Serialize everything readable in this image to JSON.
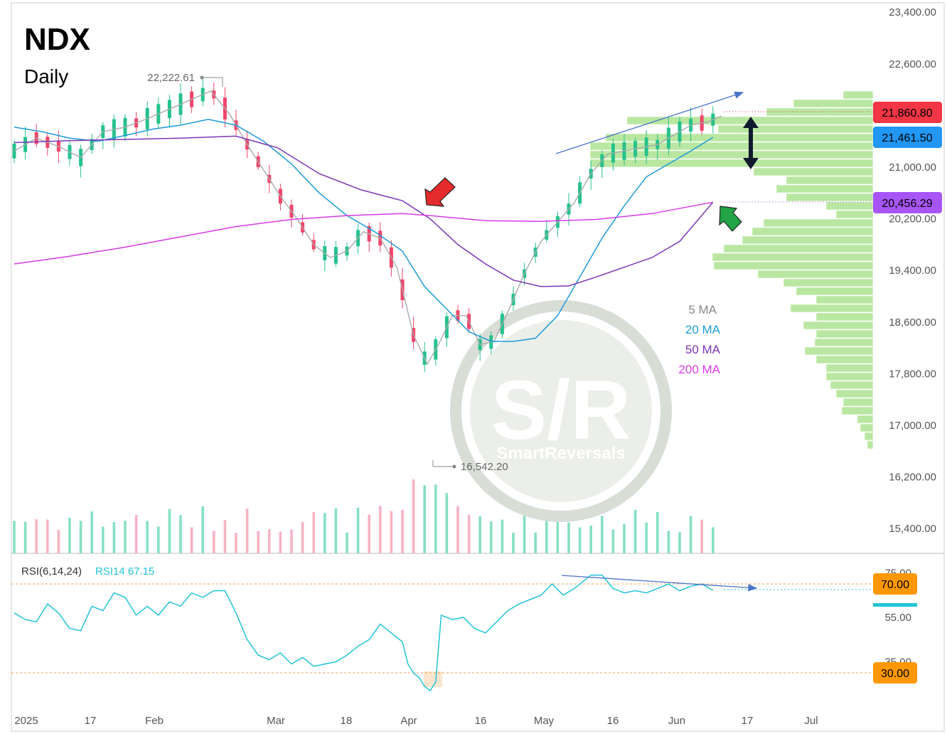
{
  "chart_data": [
    {
      "type": "candlestick",
      "title": "NDX",
      "subtitle": "Daily",
      "x_tick_labels": [
        "2025",
        "17",
        "Feb",
        "Mar",
        "18",
        "Apr",
        "16",
        "May",
        "16",
        "Jun",
        "17",
        "Jul"
      ],
      "y_tick_labels": [
        "23,400.00",
        "22,600.00",
        "21,000.00",
        "20,200.00",
        "19,400.00",
        "18,600.00",
        "17,800.00",
        "17,000.00",
        "16,200.00",
        "15,400.00"
      ],
      "y_tick_values": [
        23400,
        22600,
        21000,
        20200,
        19400,
        18600,
        17800,
        17000,
        16200,
        15400
      ],
      "ylim": [
        14950,
        23600
      ],
      "high_marker": {
        "value": 22222.61,
        "label": "22,222.61"
      },
      "low_marker": {
        "value": 16542.2,
        "label": "16,542.20"
      },
      "price_tags": [
        {
          "value": 21860.8,
          "label": "21,860.80",
          "color": "#f23645"
        },
        {
          "value": 21461.5,
          "label": "21,461.50",
          "color": "#2196f3"
        },
        {
          "value": 20456.29,
          "label": "20,456.29",
          "color": "#a855f7"
        }
      ],
      "legend": [
        {
          "label": "5 MA",
          "color": "#888888"
        },
        {
          "label": "20 MA",
          "color": "#1e9bd7"
        },
        {
          "label": "50 MA",
          "color": "#7b35b5"
        },
        {
          "label": "200 MA",
          "color": "#d63be6"
        }
      ],
      "ma_series": [
        {
          "name": "5 MA",
          "color": "#aaaaaa",
          "values": [
            [
              0,
              21250
            ],
            [
              8,
              21450
            ],
            [
              16,
              21320
            ],
            [
              24,
              21150
            ],
            [
              32,
              21550
            ],
            [
              40,
              21620
            ],
            [
              48,
              21750
            ],
            [
              56,
              21900
            ],
            [
              64,
              22050
            ],
            [
              71,
              22180
            ],
            [
              78,
              21800
            ],
            [
              84,
              21350
            ],
            [
              90,
              20950
            ],
            [
              96,
              20550
            ],
            [
              102,
              20200
            ],
            [
              108,
              19800
            ],
            [
              114,
              19600
            ],
            [
              120,
              19700
            ],
            [
              126,
              20000
            ],
            [
              132,
              19900
            ],
            [
              138,
              19450
            ],
            [
              144,
              18400
            ],
            [
              149,
              17950
            ],
            [
              153,
              18250
            ],
            [
              158,
              18700
            ],
            [
              163,
              18700
            ],
            [
              168,
              18250
            ],
            [
              173,
              18300
            ],
            [
              178,
              18750
            ],
            [
              184,
              19350
            ],
            [
              190,
              19850
            ],
            [
              196,
              20150
            ],
            [
              202,
              20450
            ],
            [
              208,
              20900
            ],
            [
              214,
              21200
            ],
            [
              220,
              21250
            ],
            [
              226,
              21300
            ],
            [
              232,
              21350
            ],
            [
              238,
              21500
            ],
            [
              244,
              21650
            ],
            [
              250,
              21700
            ],
            [
              255,
              21790
            ]
          ]
        },
        {
          "name": "20 MA",
          "color": "#1e9bd7",
          "values": [
            [
              0,
              21620
            ],
            [
              10,
              21550
            ],
            [
              20,
              21450
            ],
            [
              30,
              21400
            ],
            [
              40,
              21490
            ],
            [
              50,
              21590
            ],
            [
              60,
              21650
            ],
            [
              70,
              21740
            ],
            [
              80,
              21650
            ],
            [
              90,
              21400
            ],
            [
              100,
              21050
            ],
            [
              110,
              20600
            ],
            [
              120,
              20250
            ],
            [
              130,
              20000
            ],
            [
              140,
              19700
            ],
            [
              148,
              19150
            ],
            [
              156,
              18800
            ],
            [
              164,
              18450
            ],
            [
              172,
              18300
            ],
            [
              180,
              18300
            ],
            [
              188,
              18350
            ],
            [
              196,
              18700
            ],
            [
              204,
              19300
            ],
            [
              212,
              19900
            ],
            [
              220,
              20400
            ],
            [
              228,
              20850
            ],
            [
              236,
              21050
            ],
            [
              244,
              21250
            ],
            [
              252,
              21461.5
            ]
          ]
        },
        {
          "name": "50 MA",
          "color": "#7b35b5",
          "values": [
            [
              0,
              21380
            ],
            [
              20,
              21410
            ],
            [
              40,
              21430
            ],
            [
              60,
              21450
            ],
            [
              80,
              21480
            ],
            [
              95,
              21300
            ],
            [
              110,
              20900
            ],
            [
              125,
              20650
            ],
            [
              140,
              20480
            ],
            [
              150,
              20200
            ],
            [
              160,
              19800
            ],
            [
              170,
              19500
            ],
            [
              180,
              19250
            ],
            [
              190,
              19150
            ],
            [
              200,
              19160
            ],
            [
              210,
              19300
            ],
            [
              220,
              19450
            ],
            [
              230,
              19600
            ],
            [
              240,
              19850
            ],
            [
              252,
              20456.29
            ]
          ]
        },
        {
          "name": "200 MA",
          "color": "#d63be6",
          "values": [
            [
              0,
              19500
            ],
            [
              20,
              19620
            ],
            [
              40,
              19760
            ],
            [
              60,
              19920
            ],
            [
              80,
              20080
            ],
            [
              100,
              20190
            ],
            [
              120,
              20250
            ],
            [
              140,
              20280
            ],
            [
              150,
              20250
            ],
            [
              170,
              20170
            ],
            [
              190,
              20160
            ],
            [
              210,
              20190
            ],
            [
              230,
              20280
            ],
            [
              252,
              20456.29
            ]
          ]
        }
      ],
      "trend_arrow": {
        "from": [
          190,
          21250
        ],
        "to": [
          258,
          21980
        ],
        "color": "#4a74c9"
      }
    },
    {
      "type": "line",
      "title": "RSI(6,14,24)",
      "series_label": "RSI14 67.15",
      "y_tick_labels": [
        "75.00",
        "55.00",
        "35.00"
      ],
      "y_tick_values": [
        75,
        55,
        35
      ],
      "ylim": [
        15,
        80
      ],
      "overbought": {
        "value": 70,
        "label": "70.00"
      },
      "oversold": {
        "value": 30,
        "label": "30.00"
      },
      "series": [
        {
          "name": "RSI14",
          "color": "#22c3d6",
          "values": [
            [
              0,
              57
            ],
            [
              4,
              54
            ],
            [
              8,
              53
            ],
            [
              12,
              61
            ],
            [
              16,
              57
            ],
            [
              20,
              50
            ],
            [
              24,
              49
            ],
            [
              28,
              60
            ],
            [
              32,
              58
            ],
            [
              36,
              66
            ],
            [
              40,
              64
            ],
            [
              44,
              56
            ],
            [
              48,
              60
            ],
            [
              52,
              56
            ],
            [
              56,
              62
            ],
            [
              60,
              60
            ],
            [
              64,
              66
            ],
            [
              68,
              64
            ],
            [
              72,
              67
            ],
            [
              76,
              67
            ],
            [
              80,
              57
            ],
            [
              84,
              45
            ],
            [
              88,
              38
            ],
            [
              92,
              36
            ],
            [
              96,
              39
            ],
            [
              100,
              34
            ],
            [
              104,
              37
            ],
            [
              108,
              33
            ],
            [
              112,
              34
            ],
            [
              116,
              35
            ],
            [
              120,
              38
            ],
            [
              124,
              42
            ],
            [
              128,
              45
            ],
            [
              132,
              52
            ],
            [
              136,
              48
            ],
            [
              140,
              44
            ],
            [
              142,
              34
            ],
            [
              144,
              30
            ],
            [
              146,
              28
            ],
            [
              148,
              24
            ],
            [
              150,
              22
            ],
            [
              152,
              26
            ],
            [
              154,
              56
            ],
            [
              158,
              54
            ],
            [
              162,
              55
            ],
            [
              166,
              50
            ],
            [
              170,
              48
            ],
            [
              174,
              53
            ],
            [
              178,
              58
            ],
            [
              182,
              61
            ],
            [
              186,
              63
            ],
            [
              190,
              65
            ],
            [
              194,
              70
            ],
            [
              198,
              65
            ],
            [
              202,
              68
            ],
            [
              206,
              72
            ],
            [
              208,
              74
            ],
            [
              212,
              74
            ],
            [
              216,
              68
            ],
            [
              220,
              66
            ],
            [
              224,
              67
            ],
            [
              228,
              66
            ],
            [
              232,
              68
            ],
            [
              236,
              70
            ],
            [
              240,
              67
            ],
            [
              244,
              69
            ],
            [
              248,
              70
            ],
            [
              252,
              67.15
            ]
          ]
        }
      ]
    }
  ],
  "volume_profile_color": "#b9e7a1",
  "watermark_text": "S/R",
  "watermark_brand": "SmartReversals"
}
